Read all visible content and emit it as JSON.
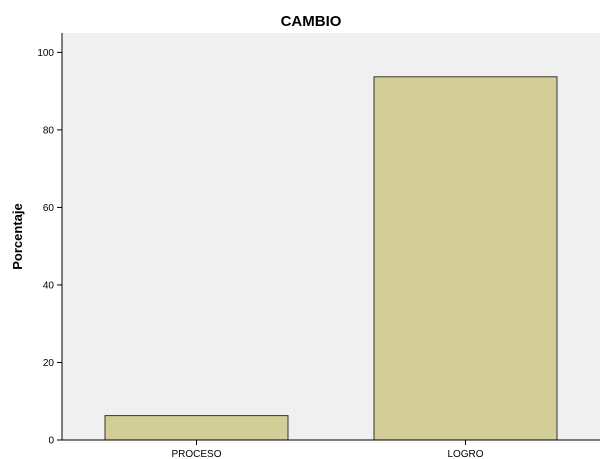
{
  "chart_data": {
    "type": "bar",
    "title": "CAMBIO",
    "xlabel": "",
    "ylabel": "Porcentaje",
    "categories": [
      "PROCESO",
      "LOGRO"
    ],
    "values": [
      6.3,
      93.7
    ],
    "ylim": [
      0,
      105
    ],
    "yticks": [
      "0",
      "20",
      "40",
      "60",
      "80",
      "100"
    ],
    "grid": false,
    "legend": "none",
    "colors": {
      "bar_fill": "#d3ce97",
      "bar_stroke": "#333333",
      "plot_background": "#f0f0f0",
      "axis": "#000000"
    }
  }
}
